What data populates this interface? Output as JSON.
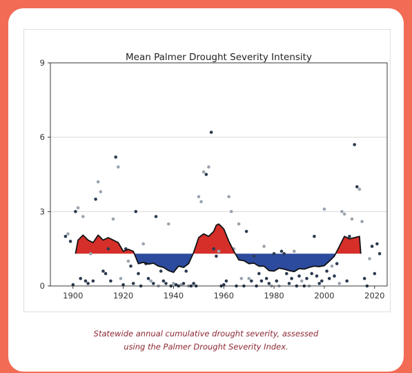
{
  "caption": {
    "line1": "Statewide annual cumulative drought severity, assessed",
    "line2": "using the Palmer Drought Severity Index."
  },
  "chart_data": {
    "type": "scatter",
    "title": "Mean Palmer Drought Severity Intensity",
    "xlabel": "",
    "ylabel": "",
    "xlim": [
      1891,
      2025
    ],
    "ylim": [
      0,
      9
    ],
    "xticks": [
      1900,
      1920,
      1940,
      1960,
      1980,
      2000,
      2020
    ],
    "yticks": [
      0,
      3,
      6,
      9
    ],
    "grid": "horizontal",
    "legend": "none",
    "baseline": 1.3,
    "colors": {
      "above": "#d62f2a",
      "below": "#2c4a9e",
      "points_light": "#9aa3ad",
      "points_dark": "#2b3a4f",
      "line": "#111111"
    },
    "points": [
      [
        1897,
        2.0
      ],
      [
        1898,
        2.1
      ],
      [
        1899,
        1.8
      ],
      [
        1900,
        0.05
      ],
      [
        1901,
        3.0
      ],
      [
        1902,
        3.15
      ],
      [
        1903,
        0.3
      ],
      [
        1904,
        2.8
      ],
      [
        1905,
        0.2
      ],
      [
        1906,
        0.1
      ],
      [
        1907,
        1.3
      ],
      [
        1908,
        0.2
      ],
      [
        1909,
        3.5
      ],
      [
        1910,
        4.2
      ],
      [
        1911,
        3.8
      ],
      [
        1912,
        0.6
      ],
      [
        1913,
        0.5
      ],
      [
        1914,
        1.5
      ],
      [
        1915,
        0.2
      ],
      [
        1916,
        2.7
      ],
      [
        1917,
        5.2
      ],
      [
        1918,
        4.8
      ],
      [
        1919,
        0.3
      ],
      [
        1920,
        0.05
      ],
      [
        1921,
        1.5
      ],
      [
        1922,
        1.0
      ],
      [
        1923,
        0.8
      ],
      [
        1924,
        0.1
      ],
      [
        1925,
        3.0
      ],
      [
        1926,
        0.5
      ],
      [
        1927,
        0.0
      ],
      [
        1928,
        1.7
      ],
      [
        1929,
        0.9
      ],
      [
        1930,
        0.3
      ],
      [
        1931,
        0.2
      ],
      [
        1932,
        0.1
      ],
      [
        1933,
        2.8
      ],
      [
        1934,
        0.0
      ],
      [
        1935,
        0.6
      ],
      [
        1936,
        0.2
      ],
      [
        1937,
        0.1
      ],
      [
        1938,
        2.5
      ],
      [
        1939,
        0.0
      ],
      [
        1940,
        0.1
      ],
      [
        1941,
        0.05
      ],
      [
        1942,
        0.0
      ],
      [
        1943,
        0.05
      ],
      [
        1944,
        0.1
      ],
      [
        1945,
        0.6
      ],
      [
        1946,
        0.0
      ],
      [
        1947,
        0.0
      ],
      [
        1948,
        0.1
      ],
      [
        1949,
        0.0
      ],
      [
        1950,
        3.6
      ],
      [
        1951,
        3.4
      ],
      [
        1952,
        4.6
      ],
      [
        1953,
        4.5
      ],
      [
        1954,
        4.8
      ],
      [
        1955,
        6.2
      ],
      [
        1956,
        1.5
      ],
      [
        1957,
        1.2
      ],
      [
        1958,
        1.4
      ],
      [
        1959,
        0.0
      ],
      [
        1960,
        0.05
      ],
      [
        1961,
        0.2
      ],
      [
        1962,
        3.6
      ],
      [
        1963,
        3.0
      ],
      [
        1964,
        1.5
      ],
      [
        1965,
        0.0
      ],
      [
        1966,
        2.5
      ],
      [
        1967,
        0.3
      ],
      [
        1968,
        0.0
      ],
      [
        1969,
        2.2
      ],
      [
        1970,
        0.3
      ],
      [
        1971,
        0.2
      ],
      [
        1972,
        1.2
      ],
      [
        1973,
        0.0
      ],
      [
        1974,
        0.5
      ],
      [
        1975,
        0.2
      ],
      [
        1976,
        1.6
      ],
      [
        1977,
        0.3
      ],
      [
        1978,
        0.1
      ],
      [
        1979,
        0.0
      ],
      [
        1980,
        1.3
      ],
      [
        1981,
        0.2
      ],
      [
        1982,
        0.0
      ],
      [
        1983,
        1.4
      ],
      [
        1984,
        1.3
      ],
      [
        1985,
        0.5
      ],
      [
        1986,
        0.1
      ],
      [
        1987,
        0.3
      ],
      [
        1988,
        1.4
      ],
      [
        1989,
        0.0
      ],
      [
        1990,
        0.4
      ],
      [
        1991,
        0.2
      ],
      [
        1992,
        0.0
      ],
      [
        1993,
        0.3
      ],
      [
        1994,
        0.0
      ],
      [
        1995,
        0.5
      ],
      [
        1996,
        2.0
      ],
      [
        1997,
        0.4
      ],
      [
        1998,
        0.1
      ],
      [
        1999,
        0.2
      ],
      [
        2000,
        3.1
      ],
      [
        2001,
        0.6
      ],
      [
        2002,
        0.3
      ],
      [
        2003,
        0.8
      ],
      [
        2004,
        0.4
      ],
      [
        2005,
        0.9
      ],
      [
        2006,
        0.1
      ],
      [
        2007,
        3.0
      ],
      [
        2008,
        2.9
      ],
      [
        2009,
        0.2
      ],
      [
        2010,
        2.0
      ],
      [
        2011,
        2.7
      ],
      [
        2012,
        5.7
      ],
      [
        2013,
        4.0
      ],
      [
        2014,
        3.9
      ],
      [
        2015,
        2.6
      ],
      [
        2016,
        0.3
      ],
      [
        2017,
        0.0
      ],
      [
        2018,
        1.1
      ],
      [
        2019,
        1.6
      ],
      [
        2020,
        0.5
      ],
      [
        2021,
        1.7
      ],
      [
        2022,
        1.3
      ]
    ],
    "smoothed": [
      [
        1901,
        1.3
      ],
      [
        1902,
        1.85
      ],
      [
        1904,
        2.05
      ],
      [
        1906,
        1.85
      ],
      [
        1908,
        1.75
      ],
      [
        1910,
        2.05
      ],
      [
        1912,
        1.85
      ],
      [
        1914,
        1.95
      ],
      [
        1916,
        1.85
      ],
      [
        1918,
        1.75
      ],
      [
        1920,
        1.4
      ],
      [
        1922,
        1.48
      ],
      [
        1924,
        1.4
      ],
      [
        1926,
        0.9
      ],
      [
        1928,
        0.95
      ],
      [
        1930,
        0.88
      ],
      [
        1932,
        0.92
      ],
      [
        1934,
        0.8
      ],
      [
        1936,
        0.75
      ],
      [
        1938,
        0.62
      ],
      [
        1940,
        0.55
      ],
      [
        1942,
        0.8
      ],
      [
        1944,
        0.75
      ],
      [
        1946,
        0.9
      ],
      [
        1948,
        1.35
      ],
      [
        1950,
        1.95
      ],
      [
        1952,
        2.1
      ],
      [
        1954,
        2.0
      ],
      [
        1956,
        2.2
      ],
      [
        1957,
        2.45
      ],
      [
        1958,
        2.5
      ],
      [
        1960,
        2.3
      ],
      [
        1962,
        1.8
      ],
      [
        1964,
        1.4
      ],
      [
        1966,
        1.05
      ],
      [
        1968,
        1.02
      ],
      [
        1970,
        0.9
      ],
      [
        1972,
        0.92
      ],
      [
        1974,
        0.8
      ],
      [
        1976,
        0.8
      ],
      [
        1978,
        0.62
      ],
      [
        1980,
        0.6
      ],
      [
        1982,
        0.72
      ],
      [
        1984,
        0.68
      ],
      [
        1986,
        0.62
      ],
      [
        1988,
        0.58
      ],
      [
        1990,
        0.7
      ],
      [
        1992,
        0.68
      ],
      [
        1994,
        0.75
      ],
      [
        1996,
        0.8
      ],
      [
        1998,
        0.78
      ],
      [
        2000,
        0.82
      ],
      [
        2002,
        1.0
      ],
      [
        2004,
        1.2
      ],
      [
        2006,
        1.6
      ],
      [
        2008,
        2.0
      ],
      [
        2010,
        1.9
      ],
      [
        2012,
        1.95
      ],
      [
        2014,
        2.0
      ],
      [
        2014.5,
        1.3
      ]
    ]
  }
}
